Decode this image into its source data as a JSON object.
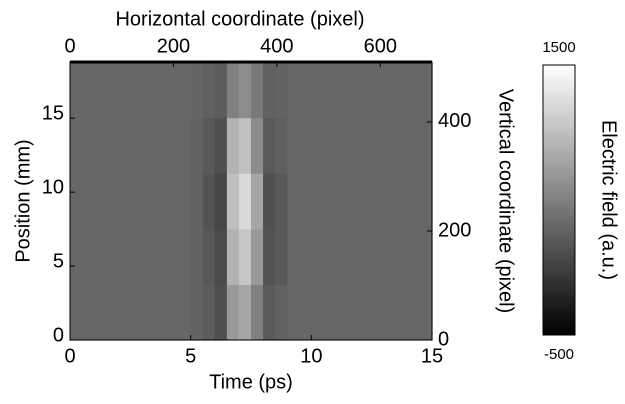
{
  "chart_data": {
    "type": "heatmap",
    "xlabel": "Time (ps)",
    "ylabel": "Position (mm)",
    "x2label": "Horizontal coordinate (pixel)",
    "y2label": "Vertical coordinate (pixel)",
    "colorbar_label": "Electric field (a.u.)",
    "xlim": [
      0,
      15
    ],
    "xticks": [
      0,
      5,
      10,
      15
    ],
    "ylim": [
      0,
      18.8
    ],
    "yticks": [
      0,
      5,
      10,
      15
    ],
    "x2lim": [
      0,
      700
    ],
    "x2ticks": [
      0,
      200,
      400,
      600
    ],
    "y2lim": [
      0,
      510
    ],
    "y2ticks": [
      0,
      200,
      400
    ],
    "clim": [
      -500,
      1500
    ],
    "cticks": [
      -500,
      1500
    ],
    "colormap": [
      "#000000",
      "#ffffff"
    ],
    "z": [
      [
        300,
        300,
        300,
        300,
        300,
        300,
        300,
        300,
        300,
        300,
        280,
        220,
        120,
        700,
        800,
        500,
        200,
        260,
        300,
        300,
        300,
        300,
        300,
        300,
        300,
        300,
        300,
        300,
        300,
        300
      ],
      [
        300,
        300,
        300,
        300,
        300,
        300,
        300,
        300,
        300,
        300,
        280,
        180,
        80,
        900,
        1050,
        700,
        150,
        200,
        300,
        300,
        300,
        300,
        300,
        300,
        300,
        300,
        300,
        300,
        300,
        300
      ],
      [
        300,
        300,
        300,
        300,
        300,
        300,
        300,
        300,
        300,
        300,
        280,
        150,
        50,
        1000,
        1200,
        800,
        120,
        200,
        300,
        300,
        300,
        300,
        300,
        300,
        300,
        300,
        300,
        300,
        300,
        300
      ],
      [
        300,
        300,
        300,
        300,
        300,
        300,
        300,
        300,
        300,
        300,
        280,
        200,
        120,
        900,
        1000,
        600,
        200,
        250,
        300,
        300,
        300,
        300,
        300,
        300,
        300,
        300,
        300,
        300,
        300,
        300
      ],
      [
        300,
        300,
        300,
        300,
        300,
        300,
        300,
        300,
        300,
        300,
        290,
        260,
        220,
        500,
        600,
        450,
        260,
        280,
        300,
        300,
        300,
        300,
        300,
        300,
        300,
        300,
        300,
        300,
        300,
        300
      ]
    ]
  }
}
